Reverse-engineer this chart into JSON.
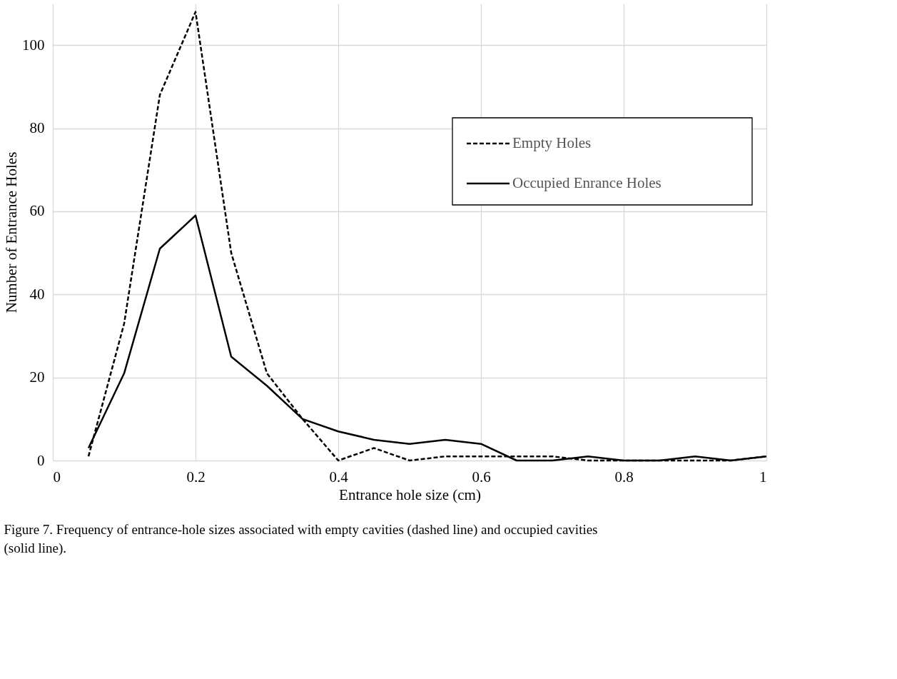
{
  "chart_data": {
    "type": "line",
    "xlabel": "Entrance hole size (cm)",
    "ylabel": "Number of Entrance Holes",
    "x": [
      0.05,
      0.1,
      0.15,
      0.2,
      0.25,
      0.3,
      0.35,
      0.4,
      0.45,
      0.5,
      0.55,
      0.6,
      0.65,
      0.7,
      0.75,
      0.8,
      0.85,
      0.9,
      0.95,
      1
    ],
    "series": [
      {
        "name": "Empty Holes",
        "color": "#000000",
        "line_style": "dashed",
        "values": [
          1,
          33,
          88,
          108,
          50,
          21,
          10,
          0,
          3,
          0,
          1,
          1,
          1,
          1,
          0,
          0,
          0,
          0,
          0,
          1
        ]
      },
      {
        "name": "Occupied Enrance Holes",
        "color": "#000000",
        "line_style": "solid",
        "values": [
          3,
          21,
          51,
          59,
          25,
          18,
          10,
          7,
          5,
          4,
          5,
          4,
          0,
          0,
          1,
          0,
          0,
          1,
          0,
          1
        ]
      }
    ],
    "xlim": [
      0,
      1
    ],
    "xticks": [
      0,
      0.2,
      0.4,
      0.6,
      0.8,
      1
    ],
    "ylim": [
      0,
      110
    ],
    "yticks": [
      0,
      20,
      40,
      60,
      80,
      100
    ],
    "grid": true,
    "legend": "top right",
    "marker": "none",
    "annotations": [
      "Figure 7. Frequency of entrance-hole sizes associated with empty cavities (dashed line) and occupied cavities (solid line)."
    ]
  }
}
